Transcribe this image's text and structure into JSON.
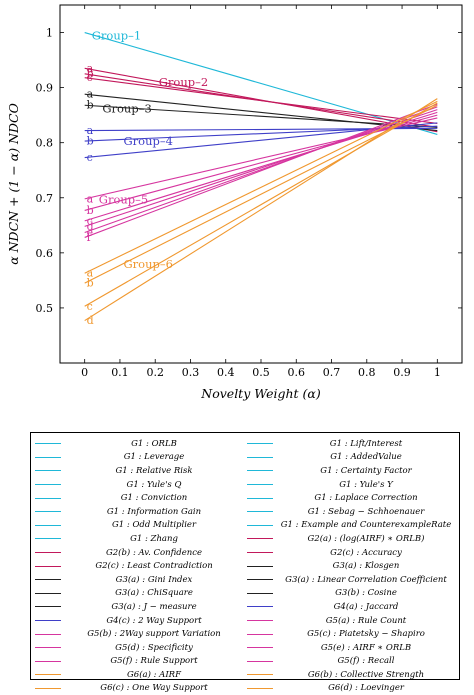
{
  "chart_data": {
    "type": "line",
    "xlabel": "Novelty Weight (α)",
    "ylabel": "α NDCN + (1 − α) NDCO",
    "xlim": [
      -0.07,
      1.07
    ],
    "ylim": [
      0.4,
      1.05
    ],
    "xticks": [
      "0",
      "0.1",
      "0.2",
      "0.3",
      "0.4",
      "0.5",
      "0.6",
      "0.7",
      "0.8",
      "0.9",
      "1"
    ],
    "yticks": [
      "0.5",
      "0.6",
      "0.7",
      "0.8",
      "0.9",
      "1"
    ],
    "x": [
      0,
      1
    ],
    "groups": [
      {
        "name": "Group–1",
        "color": "#1fb8d8",
        "label_x": 0.02,
        "label_y": 0.995,
        "lines": [
          {
            "marker": "",
            "values": [
              1.0,
              0.815
            ]
          }
        ]
      },
      {
        "name": "Group–2",
        "color": "#c2185b",
        "label_x": 0.21,
        "label_y": 0.91,
        "lines": [
          {
            "marker": "a",
            "values": [
              0.935,
              0.82
            ]
          },
          {
            "marker": "b",
            "values": [
              0.925,
              0.828
            ]
          },
          {
            "marker": "c",
            "values": [
              0.918,
              0.835
            ]
          }
        ]
      },
      {
        "name": "Group–3",
        "color": "#222222",
        "label_x": 0.05,
        "label_y": 0.862,
        "lines": [
          {
            "marker": "a",
            "values": [
              0.888,
              0.822
            ]
          },
          {
            "marker": "b",
            "values": [
              0.868,
              0.828
            ]
          }
        ]
      },
      {
        "name": "Group–4",
        "color": "#3f3fc8",
        "label_x": 0.11,
        "label_y": 0.803,
        "lines": [
          {
            "marker": "a",
            "values": [
              0.822,
              0.826
            ]
          },
          {
            "marker": "b",
            "values": [
              0.803,
              0.83
            ]
          },
          {
            "marker": "c",
            "values": [
              0.773,
              0.836
            ]
          }
        ]
      },
      {
        "name": "Group–5",
        "color": "#d6359f",
        "label_x": 0.04,
        "label_y": 0.697,
        "lines": [
          {
            "marker": "a",
            "values": [
              0.698,
              0.845
            ]
          },
          {
            "marker": "b",
            "values": [
              0.677,
              0.85
            ]
          },
          {
            "marker": "c",
            "values": [
              0.658,
              0.855
            ]
          },
          {
            "marker": "d",
            "values": [
              0.648,
              0.86
            ]
          },
          {
            "marker": "e",
            "values": [
              0.637,
              0.865
            ]
          },
          {
            "marker": "f",
            "values": [
              0.628,
              0.87
            ]
          }
        ]
      },
      {
        "name": "Group–6",
        "color": "#f0982f",
        "label_x": 0.11,
        "label_y": 0.58,
        "lines": [
          {
            "marker": "a",
            "values": [
              0.563,
              0.875
            ]
          },
          {
            "marker": "b",
            "values": [
              0.545,
              0.868
            ]
          },
          {
            "marker": "c",
            "values": [
              0.503,
              0.872
            ]
          },
          {
            "marker": "d",
            "values": [
              0.477,
              0.88
            ]
          }
        ]
      }
    ],
    "legend_position": "below"
  },
  "legend": [
    {
      "label": "G1 : ORLB",
      "color": "#1fb8d8"
    },
    {
      "label": "G1 : Lift/Interest",
      "color": "#1fb8d8"
    },
    {
      "label": "G1 : Leverage",
      "color": "#1fb8d8"
    },
    {
      "label": "G1 : AddedValue",
      "color": "#1fb8d8"
    },
    {
      "label": "G1 : Relative Risk",
      "color": "#1fb8d8"
    },
    {
      "label": "G1 : Certainty Factor",
      "color": "#1fb8d8"
    },
    {
      "label": "G1 : Yule's Q",
      "color": "#1fb8d8"
    },
    {
      "label": "G1 : Yule's Y",
      "color": "#1fb8d8"
    },
    {
      "label": "G1 : Conviction",
      "color": "#1fb8d8"
    },
    {
      "label": "G1 : Laplace Correction",
      "color": "#1fb8d8"
    },
    {
      "label": "G1 : Information Gain",
      "color": "#1fb8d8"
    },
    {
      "label": "G1 : Sebag − Schhoenauer",
      "color": "#1fb8d8"
    },
    {
      "label": "G1 : Odd Multiplier",
      "color": "#1fb8d8"
    },
    {
      "label": "G1 : Example and CounterexampleRate",
      "color": "#1fb8d8"
    },
    {
      "label": "G1 : Zhang",
      "color": "#1fb8d8"
    },
    {
      "label": "G2(a) : (log(AIRF) ∗ ORLB)",
      "color": "#c2185b"
    },
    {
      "label": "G2(b) : Av. Confidence",
      "color": "#c2185b"
    },
    {
      "label": "G2(c) : Accuracy",
      "color": "#c2185b"
    },
    {
      "label": "G2(c) : Least Contradiction",
      "color": "#c2185b"
    },
    {
      "label": "G3(a) : Klosgen",
      "color": "#222222"
    },
    {
      "label": "G3(a) : Gini Index",
      "color": "#222222"
    },
    {
      "label": "G3(a) : Linear Correlation Coefficient",
      "color": "#222222"
    },
    {
      "label": "G3(a) : ChiSquare",
      "color": "#222222"
    },
    {
      "label": "G3(b) : Cosine",
      "color": "#222222"
    },
    {
      "label": "G3(a) : J − measure",
      "color": "#222222"
    },
    {
      "label": "G4(a) : Jaccard",
      "color": "#3f3fc8"
    },
    {
      "label": "G4(c) : 2 Way Support",
      "color": "#3f3fc8"
    },
    {
      "label": "G5(a) : Rule Count",
      "color": "#d6359f"
    },
    {
      "label": "G5(b) : 2Way support Variation",
      "color": "#d6359f"
    },
    {
      "label": "G5(c) : Piatetsky − Shapiro",
      "color": "#d6359f"
    },
    {
      "label": "G5(d) : Specificity",
      "color": "#d6359f"
    },
    {
      "label": "G5(e) : AIRF ∗ ORLB",
      "color": "#d6359f"
    },
    {
      "label": "G5(f) : Rule Support",
      "color": "#d6359f"
    },
    {
      "label": "G5(f) : Recall",
      "color": "#d6359f"
    },
    {
      "label": "G6(a) : AIRF",
      "color": "#f0982f"
    },
    {
      "label": "G6(b) : Collective Strength",
      "color": "#f0982f"
    },
    {
      "label": "G6(c) : One Way Support",
      "color": "#f0982f"
    },
    {
      "label": "G6(d) : Loevinger",
      "color": "#f0982f"
    }
  ]
}
